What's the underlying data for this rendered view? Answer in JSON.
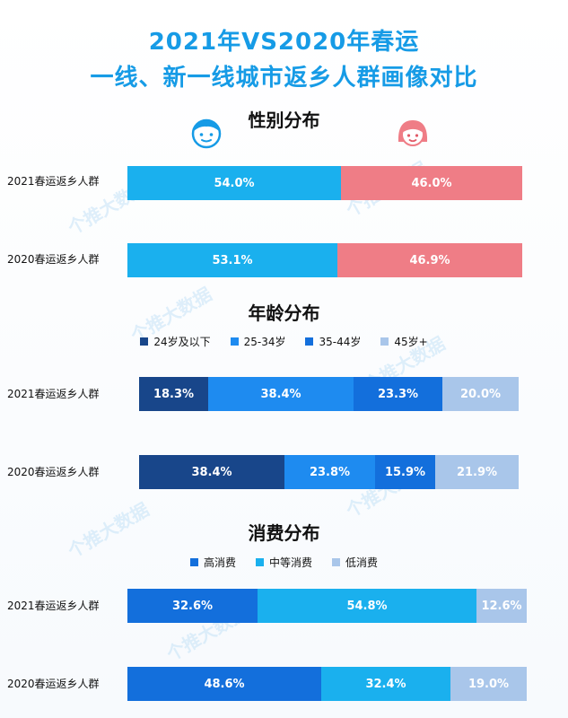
{
  "title": {
    "line1": "2021年VS2020年春运",
    "line2": "一线、新一线城市返乡人群画像对比"
  },
  "watermark": "个推大数据",
  "colors": {
    "title": "#169be6",
    "male": "#1ab0ee",
    "female": "#ef7d86",
    "age_24_below": "#18468a",
    "age_25_34": "#1e8bf0",
    "age_35_44": "#136fdc",
    "age_45_plus": "#a9c6ea",
    "spend_high": "#136fdc",
    "spend_mid": "#1ab0ee",
    "spend_low": "#a9c6ea"
  },
  "icons": [
    "male-avatar-icon",
    "female-avatar-icon"
  ],
  "chart_data": [
    {
      "type": "bar",
      "stacked": true,
      "orientation": "horizontal",
      "title": "性别分布",
      "categories": [
        "2021春运返乡人群",
        "2020春运返乡人群"
      ],
      "series": [
        {
          "values": [
            54.0,
            53.1
          ],
          "labels": [
            "54.0%",
            "53.1%"
          ]
        },
        {
          "values": [
            46.0,
            46.9
          ],
          "labels": [
            "46.0%",
            "46.9%"
          ]
        }
      ]
    },
    {
      "type": "bar",
      "stacked": true,
      "orientation": "horizontal",
      "title": "年龄分布",
      "legend": "top",
      "categories": [
        "2021春运返乡人群",
        "2020春运返乡人群"
      ],
      "series": [
        {
          "name": "24岁及以下",
          "values": [
            18.3,
            38.4
          ],
          "labels": [
            "18.3%",
            "38.4%"
          ]
        },
        {
          "name": "25-34岁",
          "values": [
            38.4,
            23.8
          ],
          "labels": [
            "38.4%",
            "23.8%"
          ]
        },
        {
          "name": "35-44岁",
          "values": [
            23.3,
            15.9
          ],
          "labels": [
            "23.3%",
            "15.9%"
          ]
        },
        {
          "name": "45岁+",
          "values": [
            20.0,
            21.9
          ],
          "labels": [
            "20.0%",
            "21.9%"
          ]
        }
      ]
    },
    {
      "type": "bar",
      "stacked": true,
      "orientation": "horizontal",
      "title": "消费分布",
      "legend": "top",
      "categories": [
        "2021春运返乡人群",
        "2020春运返乡人群"
      ],
      "series": [
        {
          "name": "高消费",
          "values": [
            32.6,
            48.6
          ],
          "labels": [
            "32.6%",
            "48.6%"
          ]
        },
        {
          "name": "中等消费",
          "values": [
            54.8,
            32.4
          ],
          "labels": [
            "54.8%",
            "32.4%"
          ]
        },
        {
          "name": "低消费",
          "values": [
            12.6,
            19.0
          ],
          "labels": [
            "12.6%",
            "19.0%"
          ]
        }
      ]
    }
  ]
}
